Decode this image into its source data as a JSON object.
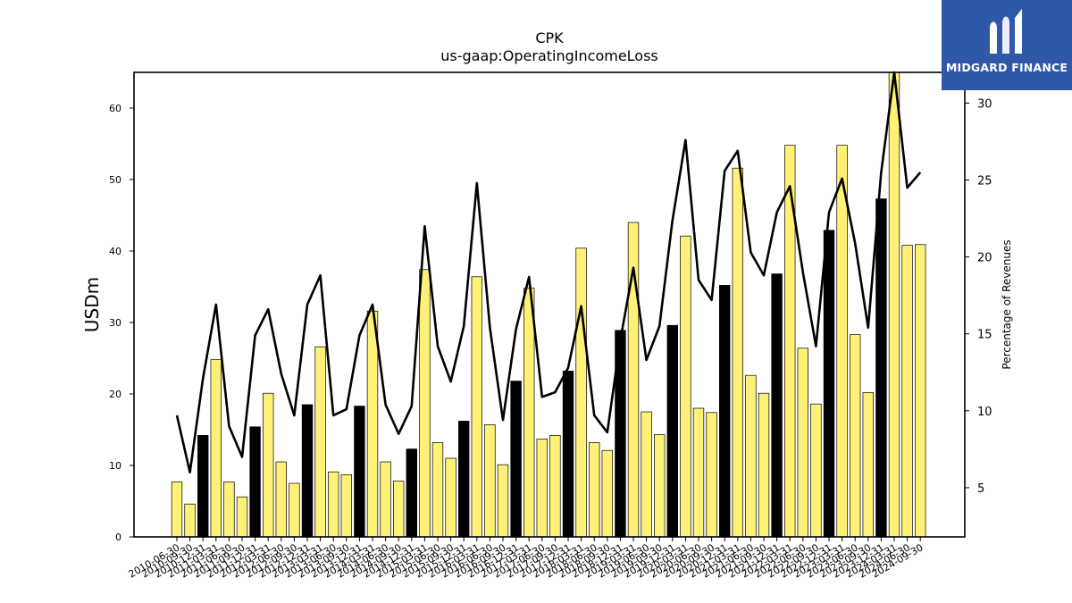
{
  "chart_data": {
    "type": "bar+line",
    "title": "CPK",
    "subtitle": "us-gaap:OperatingIncomeLoss",
    "ylabel": "USDm",
    "y2label": "Percentage of Revenues",
    "ylim": [
      0,
      65
    ],
    "y2lim": [
      1.8,
      32.0
    ],
    "yticks": [
      0,
      10,
      20,
      30,
      40,
      50,
      60
    ],
    "y2ticks": [
      5,
      10,
      15,
      20,
      25,
      30
    ],
    "categories": [
      "2010-06-30",
      "2010-09-30",
      "2010-12-31",
      "2011-03-31",
      "2011-06-30",
      "2011-09-30",
      "2011-12-31",
      "2012-03-31",
      "2012-06-30",
      "2012-09-30",
      "2012-12-31",
      "2013-03-31",
      "2013-06-30",
      "2013-09-30",
      "2013-12-31",
      "2014-03-31",
      "2014-06-30",
      "2014-09-30",
      "2014-12-31",
      "2015-03-31",
      "2015-06-30",
      "2015-09-30",
      "2015-12-31",
      "2016-03-31",
      "2016-06-30",
      "2016-09-30",
      "2016-12-31",
      "2017-03-31",
      "2017-06-30",
      "2017-09-30",
      "2017-12-31",
      "2018-03-31",
      "2018-06-30",
      "2018-09-30",
      "2018-12-31",
      "2019-03-31",
      "2019-06-30",
      "2019-09-30",
      "2019-12-31",
      "2020-03-31",
      "2020-06-30",
      "2020-09-30",
      "2020-12-31",
      "2021-03-31",
      "2021-06-30",
      "2021-09-30",
      "2021-12-31",
      "2022-03-31",
      "2022-06-30",
      "2022-09-30",
      "2022-12-31",
      "2023-03-31",
      "2023-06-30",
      "2023-09-30",
      "2023-12-31",
      "2024-03-31",
      "2024-06-30",
      "2024-09-30"
    ],
    "series": [
      {
        "kind": "bar",
        "values": [
          7.7,
          4.6,
          14.2,
          24.8,
          7.7,
          5.6,
          15.4,
          20.1,
          10.5,
          7.5,
          18.5,
          26.6,
          9.1,
          8.7,
          18.3,
          31.6,
          10.5,
          7.8,
          12.3,
          37.4,
          13.2,
          11.0,
          16.2,
          36.4,
          15.7,
          10.1,
          21.8,
          34.8,
          13.7,
          14.2,
          23.2,
          40.4,
          13.2,
          12.1,
          28.9,
          44.0,
          17.5,
          14.3,
          29.6,
          42.1,
          18.0,
          17.4,
          35.2,
          51.6,
          22.6,
          20.1,
          36.8,
          54.8,
          26.4,
          18.6,
          42.9,
          54.8,
          28.3,
          20.2,
          47.3,
          65.0,
          40.8,
          40.9
        ],
        "highlight": [
          false,
          false,
          true,
          false,
          false,
          false,
          true,
          false,
          false,
          false,
          true,
          false,
          false,
          false,
          true,
          false,
          false,
          false,
          true,
          false,
          false,
          false,
          true,
          false,
          false,
          false,
          true,
          false,
          false,
          false,
          true,
          false,
          false,
          false,
          true,
          false,
          false,
          false,
          true,
          false,
          false,
          false,
          true,
          false,
          false,
          false,
          true,
          false,
          false,
          false,
          true,
          false,
          false,
          false,
          true,
          false,
          false,
          false
        ]
      },
      {
        "kind": "line",
        "axis": "right",
        "values": [
          9.7,
          6.0,
          12.1,
          16.9,
          9.0,
          7.0,
          14.9,
          16.6,
          12.4,
          9.7,
          16.9,
          18.8,
          9.7,
          10.1,
          14.9,
          16.9,
          10.4,
          8.5,
          10.3,
          22.0,
          14.2,
          11.9,
          15.5,
          24.8,
          15.4,
          9.4,
          15.3,
          18.7,
          10.9,
          11.2,
          12.8,
          16.8,
          9.7,
          8.6,
          14.6,
          19.3,
          13.3,
          15.5,
          22.4,
          27.6,
          18.5,
          17.2,
          25.6,
          26.9,
          20.3,
          18.8,
          22.9,
          24.6,
          19.0,
          14.2,
          22.9,
          25.1,
          20.9,
          15.4,
          25.5,
          32.0,
          24.5,
          25.5
        ]
      }
    ],
    "colors": {
      "bar": "#fff176",
      "bar_highlight": "#000000",
      "bar_edge": "#000000",
      "line": "#000000"
    }
  },
  "logo": {
    "text": "MIDGARD FINANCE"
  }
}
